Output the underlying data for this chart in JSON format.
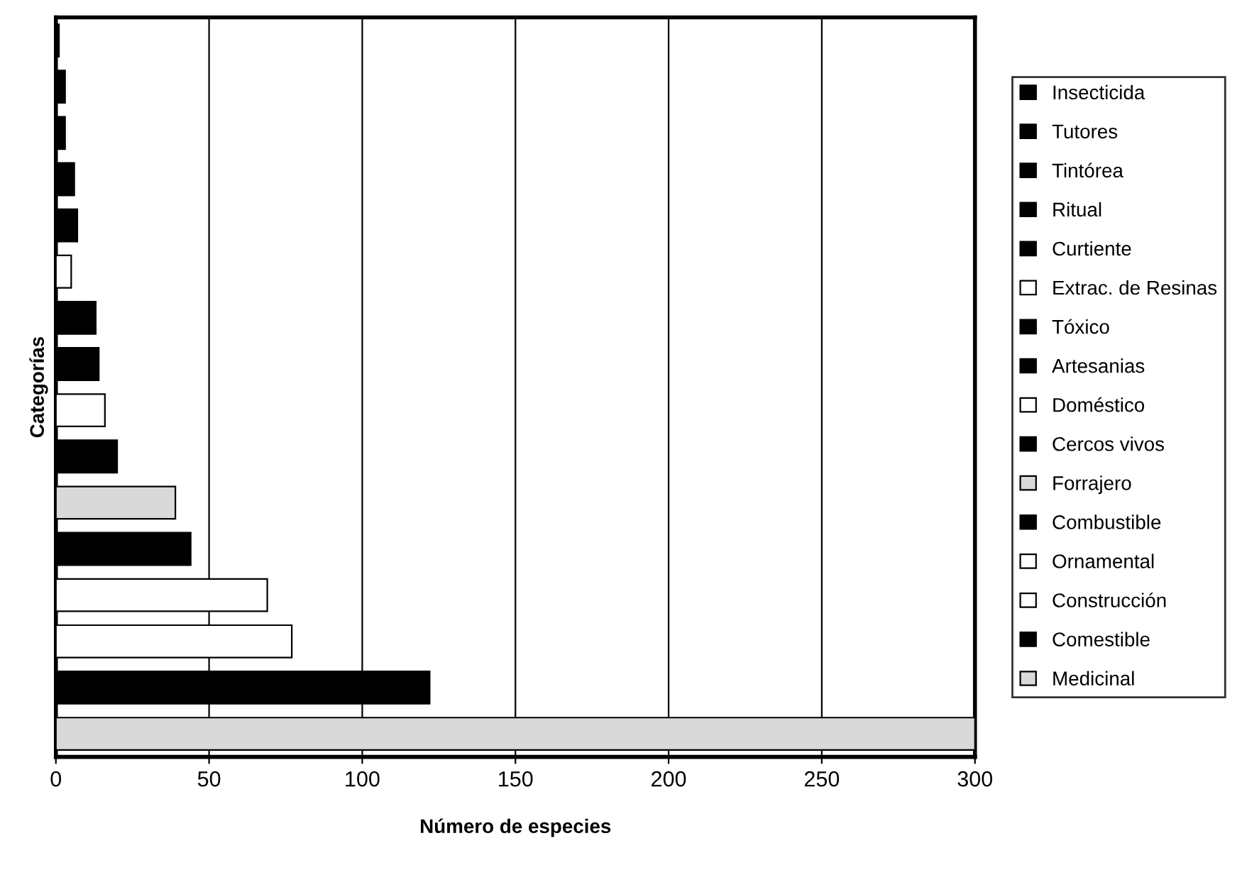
{
  "chart_data": {
    "type": "bar",
    "orientation": "horizontal",
    "xlabel": "Número de especies",
    "ylabel": "Categorías",
    "categories": [
      null,
      null,
      null,
      null,
      null,
      null,
      null,
      null,
      null,
      null,
      null,
      null,
      null,
      null,
      null,
      null
    ],
    "series": [
      {
        "name": "Insecticida",
        "color": "#000000",
        "values": [
          1,
          null,
          null,
          null,
          null,
          null,
          null,
          null,
          null,
          null,
          null,
          null,
          null,
          null,
          null,
          null
        ]
      },
      {
        "name": "Tutores",
        "color": "#000000",
        "values": [
          null,
          3,
          null,
          null,
          null,
          null,
          null,
          null,
          null,
          null,
          null,
          null,
          null,
          null,
          null,
          null
        ]
      },
      {
        "name": "Tintórea",
        "color": "#000000",
        "values": [
          null,
          null,
          3,
          null,
          null,
          null,
          null,
          null,
          null,
          null,
          null,
          null,
          null,
          null,
          null,
          null
        ]
      },
      {
        "name": "Ritual",
        "color": "#000000",
        "values": [
          null,
          null,
          null,
          6,
          null,
          null,
          null,
          null,
          null,
          null,
          null,
          null,
          null,
          null,
          null,
          null
        ]
      },
      {
        "name": "Curtiente",
        "color": "#000000",
        "values": [
          null,
          null,
          null,
          null,
          7,
          null,
          null,
          null,
          null,
          null,
          null,
          null,
          null,
          null,
          null,
          null
        ]
      },
      {
        "name": "Extrac. de Resinas",
        "color": "#ffffff",
        "values": [
          null,
          null,
          null,
          null,
          null,
          5,
          null,
          null,
          null,
          null,
          null,
          null,
          null,
          null,
          null,
          null
        ]
      },
      {
        "name": "Tóxico",
        "color": "#000000",
        "values": [
          null,
          null,
          null,
          null,
          null,
          null,
          13,
          null,
          null,
          null,
          null,
          null,
          null,
          null,
          null,
          null
        ]
      },
      {
        "name": "Artesanias",
        "color": "#000000",
        "values": [
          null,
          null,
          null,
          null,
          null,
          null,
          null,
          14,
          null,
          null,
          null,
          null,
          null,
          null,
          null,
          null
        ]
      },
      {
        "name": "Doméstico",
        "color": "#ffffff",
        "values": [
          null,
          null,
          null,
          null,
          null,
          null,
          null,
          null,
          16,
          null,
          null,
          null,
          null,
          null,
          null,
          null
        ]
      },
      {
        "name": "Cercos vivos",
        "color": "#000000",
        "values": [
          null,
          null,
          null,
          null,
          null,
          null,
          null,
          null,
          null,
          20,
          null,
          null,
          null,
          null,
          null,
          null
        ]
      },
      {
        "name": "Forrajero",
        "color": "#d9d9d9",
        "values": [
          null,
          null,
          null,
          null,
          null,
          null,
          null,
          null,
          null,
          null,
          39,
          null,
          null,
          null,
          null,
          null
        ]
      },
      {
        "name": "Combustible",
        "color": "#000000",
        "values": [
          null,
          null,
          null,
          null,
          null,
          null,
          null,
          null,
          null,
          null,
          null,
          44,
          null,
          null,
          null,
          null
        ]
      },
      {
        "name": "Ornamental",
        "color": "#ffffff",
        "values": [
          null,
          null,
          null,
          null,
          null,
          null,
          null,
          null,
          null,
          null,
          null,
          null,
          69,
          null,
          null,
          null
        ]
      },
      {
        "name": "Construcción",
        "color": "#ffffff",
        "values": [
          null,
          null,
          null,
          null,
          null,
          null,
          null,
          null,
          null,
          null,
          null,
          null,
          null,
          77,
          null,
          null
        ]
      },
      {
        "name": "Comestible",
        "color": "#000000",
        "values": [
          null,
          null,
          null,
          null,
          null,
          null,
          null,
          null,
          null,
          null,
          null,
          null,
          null,
          null,
          122,
          null
        ]
      },
      {
        "name": "Medicinal",
        "color": "#d9d9d9",
        "values": [
          null,
          null,
          null,
          null,
          null,
          null,
          null,
          null,
          null,
          null,
          null,
          null,
          null,
          null,
          null,
          300
        ]
      }
    ],
    "xlim": [
      0,
      300
    ],
    "xticks": [
      0,
      50,
      100,
      150,
      200,
      250,
      300
    ],
    "grid": "x",
    "legend": "right",
    "tick_labels": "x"
  }
}
